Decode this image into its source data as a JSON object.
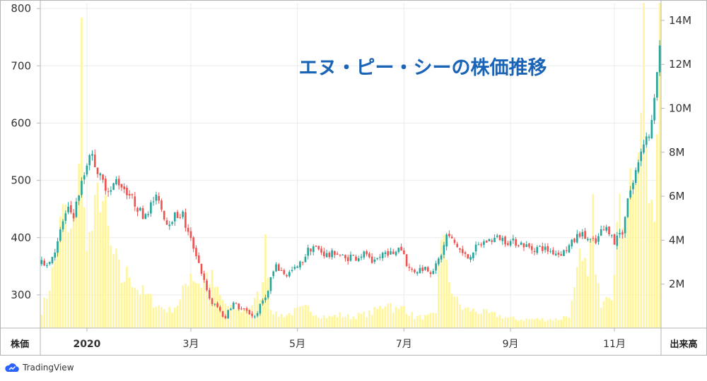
{
  "chart_data": {
    "type": "candlestick",
    "title": "エヌ・ピー・シーの株価推移",
    "left_axis_label": "株価",
    "right_axis_label": "出来高",
    "y_price": {
      "min": 242,
      "max": 810,
      "ticks": [
        300,
        400,
        500,
        600,
        700,
        800
      ]
    },
    "y_volume": {
      "min": 0,
      "max": 14800000,
      "ticks": [
        2000000,
        4000000,
        6000000,
        8000000,
        10000000,
        12000000,
        14000000
      ],
      "tick_labels": [
        "2M",
        "4M",
        "6M",
        "8M",
        "10M",
        "12M",
        "14M"
      ]
    },
    "x_labels": [
      {
        "label": "2020",
        "index": 17
      },
      {
        "label": "3月",
        "index": 56
      },
      {
        "label": "5月",
        "index": 96
      },
      {
        "label": "7月",
        "index": 136
      },
      {
        "label": "9月",
        "index": 176
      },
      {
        "label": "11月",
        "index": 215
      }
    ],
    "total_bars": 233,
    "price_anchors": [
      [
        0,
        355
      ],
      [
        3,
        358
      ],
      [
        6,
        390
      ],
      [
        8,
        430
      ],
      [
        10,
        448
      ],
      [
        12,
        440
      ],
      [
        14,
        478
      ],
      [
        16,
        510
      ],
      [
        18,
        550
      ],
      [
        20,
        530
      ],
      [
        22,
        505
      ],
      [
        24,
        490
      ],
      [
        26,
        482
      ],
      [
        28,
        500
      ],
      [
        30,
        492
      ],
      [
        33,
        475
      ],
      [
        36,
        452
      ],
      [
        38,
        440
      ],
      [
        40,
        448
      ],
      [
        42,
        465
      ],
      [
        44,
        470
      ],
      [
        45,
        450
      ],
      [
        47,
        425
      ],
      [
        50,
        438
      ],
      [
        53,
        440
      ],
      [
        54,
        420
      ],
      [
        56,
        395
      ],
      [
        58,
        372
      ],
      [
        60,
        340
      ],
      [
        62,
        305
      ],
      [
        64,
        285
      ],
      [
        66,
        278
      ],
      [
        68,
        265
      ],
      [
        69,
        258
      ],
      [
        70,
        275
      ],
      [
        72,
        285
      ],
      [
        74,
        278
      ],
      [
        76,
        272
      ],
      [
        78,
        268
      ],
      [
        80,
        262
      ],
      [
        82,
        280
      ],
      [
        84,
        300
      ],
      [
        85,
        305
      ],
      [
        86,
        330
      ],
      [
        88,
        348
      ],
      [
        90,
        342
      ],
      [
        92,
        335
      ],
      [
        94,
        342
      ],
      [
        96,
        348
      ],
      [
        98,
        360
      ],
      [
        100,
        378
      ],
      [
        102,
        385
      ],
      [
        104,
        378
      ],
      [
        106,
        372
      ],
      [
        108,
        368
      ],
      [
        110,
        375
      ],
      [
        112,
        370
      ],
      [
        114,
        362
      ],
      [
        116,
        368
      ],
      [
        118,
        365
      ],
      [
        120,
        370
      ],
      [
        122,
        372
      ],
      [
        124,
        350
      ],
      [
        126,
        362
      ],
      [
        128,
        372
      ],
      [
        130,
        375
      ],
      [
        132,
        368
      ],
      [
        134,
        385
      ],
      [
        136,
        372
      ],
      [
        137,
        355
      ],
      [
        138,
        345
      ],
      [
        140,
        342
      ],
      [
        142,
        345
      ],
      [
        144,
        348
      ],
      [
        146,
        342
      ],
      [
        148,
        350
      ],
      [
        150,
        372
      ],
      [
        151,
        385
      ],
      [
        152,
        405
      ],
      [
        154,
        395
      ],
      [
        156,
        385
      ],
      [
        158,
        372
      ],
      [
        160,
        365
      ],
      [
        162,
        378
      ],
      [
        164,
        385
      ],
      [
        166,
        392
      ],
      [
        168,
        395
      ],
      [
        170,
        398
      ],
      [
        172,
        400
      ],
      [
        174,
        395
      ],
      [
        176,
        392
      ],
      [
        178,
        392
      ],
      [
        180,
        390
      ],
      [
        182,
        385
      ],
      [
        184,
        380
      ],
      [
        186,
        382
      ],
      [
        188,
        382
      ],
      [
        190,
        378
      ],
      [
        192,
        375
      ],
      [
        194,
        372
      ],
      [
        196,
        375
      ],
      [
        198,
        385
      ],
      [
        200,
        395
      ],
      [
        202,
        408
      ],
      [
        204,
        400
      ],
      [
        206,
        395
      ],
      [
        208,
        390
      ],
      [
        210,
        410
      ],
      [
        212,
        415
      ],
      [
        214,
        410
      ],
      [
        215,
        385
      ],
      [
        216,
        405
      ],
      [
        218,
        410
      ],
      [
        219,
        440
      ],
      [
        220,
        470
      ],
      [
        222,
        495
      ],
      [
        224,
        535
      ],
      [
        226,
        570
      ],
      [
        228,
        580
      ],
      [
        229,
        600
      ],
      [
        230,
        635
      ],
      [
        231,
        690
      ],
      [
        232,
        725
      ]
    ],
    "volume_anchors_m": [
      [
        0,
        0.8
      ],
      [
        2,
        1.5
      ],
      [
        5,
        3.0
      ],
      [
        7,
        4.5
      ],
      [
        9,
        5.5
      ],
      [
        10,
        4.0
      ],
      [
        12,
        4.5
      ],
      [
        13,
        6.0
      ],
      [
        14,
        8.0
      ],
      [
        15,
        12.8
      ],
      [
        16,
        5.0
      ],
      [
        18,
        4.0
      ],
      [
        20,
        5.0
      ],
      [
        22,
        6.5
      ],
      [
        24,
        5.0
      ],
      [
        26,
        3.5
      ],
      [
        28,
        3.0
      ],
      [
        30,
        2.2
      ],
      [
        33,
        2.5
      ],
      [
        36,
        1.8
      ],
      [
        40,
        1.4
      ],
      [
        44,
        1.0
      ],
      [
        48,
        0.8
      ],
      [
        52,
        1.2
      ],
      [
        54,
        2.0
      ],
      [
        56,
        2.6
      ],
      [
        58,
        2.2
      ],
      [
        60,
        2.0
      ],
      [
        62,
        2.4
      ],
      [
        64,
        2.2
      ],
      [
        66,
        1.6
      ],
      [
        68,
        1.2
      ],
      [
        70,
        1.0
      ],
      [
        73,
        0.9
      ],
      [
        76,
        0.8
      ],
      [
        80,
        1.2
      ],
      [
        83,
        1.8
      ],
      [
        84,
        5.4
      ],
      [
        85,
        2.4
      ],
      [
        86,
        1.0
      ],
      [
        88,
        0.6
      ],
      [
        92,
        0.6
      ],
      [
        96,
        0.8
      ],
      [
        100,
        0.9
      ],
      [
        104,
        0.6
      ],
      [
        108,
        0.5
      ],
      [
        112,
        0.6
      ],
      [
        116,
        0.5
      ],
      [
        120,
        0.6
      ],
      [
        124,
        0.7
      ],
      [
        128,
        1.0
      ],
      [
        130,
        1.3
      ],
      [
        132,
        0.9
      ],
      [
        134,
        0.8
      ],
      [
        136,
        1.0
      ],
      [
        138,
        0.7
      ],
      [
        140,
        0.5
      ],
      [
        144,
        0.5
      ],
      [
        148,
        0.6
      ],
      [
        149,
        3.2
      ],
      [
        150,
        4.6
      ],
      [
        151,
        3.8
      ],
      [
        152,
        2.6
      ],
      [
        154,
        1.8
      ],
      [
        156,
        1.2
      ],
      [
        158,
        0.9
      ],
      [
        162,
        0.8
      ],
      [
        166,
        0.7
      ],
      [
        170,
        0.6
      ],
      [
        174,
        0.5
      ],
      [
        178,
        0.4
      ],
      [
        182,
        0.4
      ],
      [
        186,
        0.4
      ],
      [
        190,
        0.4
      ],
      [
        194,
        0.4
      ],
      [
        198,
        0.6
      ],
      [
        200,
        1.6
      ],
      [
        202,
        3.0
      ],
      [
        204,
        2.6
      ],
      [
        206,
        3.6
      ],
      [
        207,
        5.8
      ],
      [
        208,
        2.2
      ],
      [
        210,
        1.2
      ],
      [
        212,
        1.8
      ],
      [
        214,
        1.6
      ],
      [
        215,
        3.2
      ],
      [
        216,
        4.6
      ],
      [
        218,
        5.4
      ],
      [
        220,
        6.4
      ],
      [
        222,
        7.0
      ],
      [
        224,
        6.4
      ],
      [
        226,
        14.0
      ],
      [
        227,
        7.2
      ],
      [
        228,
        6.0
      ],
      [
        230,
        6.2
      ],
      [
        232,
        14.2
      ]
    ]
  },
  "branding": {
    "logo_text": "TradingView",
    "logo_color": "#2962ff"
  },
  "colors": {
    "up": "#26a69a",
    "down": "#ef5350",
    "volume": "#fff59d",
    "title": "#1a64b8",
    "grid": "#ececec",
    "border": "#b5b5b5"
  }
}
